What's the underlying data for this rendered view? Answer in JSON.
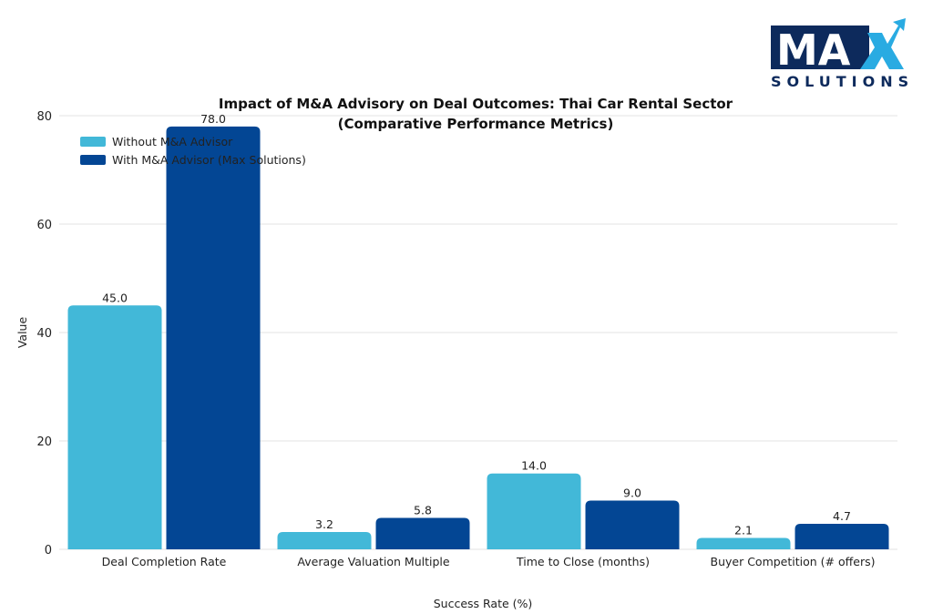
{
  "logo": {
    "mark": "MAX",
    "wordmark": "SOLUTIONS",
    "colors": {
      "navy": "#0d2a5c",
      "accent": "#29abe2"
    }
  },
  "chart_data": {
    "type": "bar",
    "title_line1": "Impact of M&A Advisory on Deal Outcomes: Thai Car Rental Sector",
    "title_line2": "(Comparative Performance Metrics)",
    "xlabel": "Success Rate (%)",
    "ylabel": "Value",
    "ylim": [
      0,
      80
    ],
    "yticks": [
      "0",
      "20",
      "40",
      "60",
      "80"
    ],
    "grid": true,
    "legend_position": "top-left",
    "categories": [
      "Deal Completion Rate",
      "Average Valuation Multiple",
      "Time to Close (months)",
      "Buyer Competition (# offers)"
    ],
    "series": [
      {
        "name": "Without M&A Advisor",
        "color": "#42b8d8",
        "values": [
          45.0,
          3.2,
          14.0,
          2.1
        ],
        "labels": [
          "45.0",
          "3.2",
          "14.0",
          "2.1"
        ]
      },
      {
        "name": "With M&A Advisor (Max Solutions)",
        "color": "#034694",
        "values": [
          78.0,
          5.8,
          9.0,
          4.7
        ],
        "labels": [
          "78.0",
          "5.8",
          "9.0",
          "4.7"
        ]
      }
    ]
  }
}
